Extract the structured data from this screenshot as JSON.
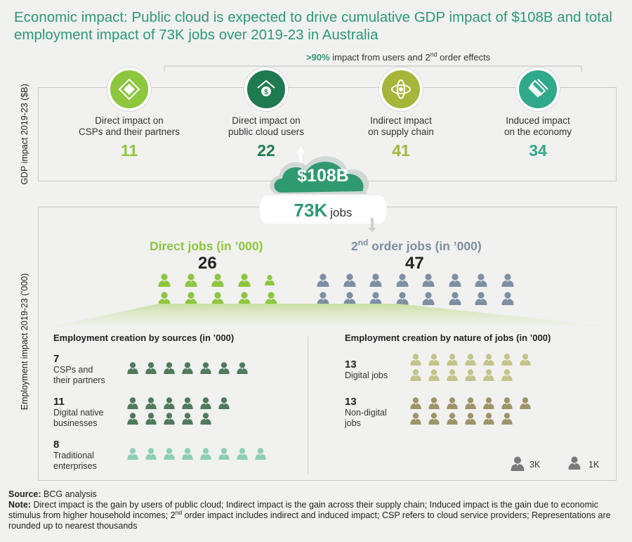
{
  "title": "Economic impact: Public cloud is expected to drive cumulative GDP impact of $108B and total employment impact of 73K jobs over 2019-23 in Australia",
  "banner": {
    "pct": ">90%",
    "text_before_sup": "impact from users and 2",
    "sup": "nd",
    "text_after_sup": "order effects"
  },
  "gdp_axis_label": "GDP impact 2019-23 ($B)",
  "employment_axis_label": "Employment impact 2019-23 (’000)",
  "colors": {
    "light_green": "#8dc63f",
    "dark_green": "#1f7a4f",
    "olive": "#a7b53a",
    "teal": "#2fa98a",
    "blue_gray": "#7d8fa3",
    "olive_light": "#c4c48a",
    "olive_dark": "#9e9468",
    "mint": "#8ccfb6",
    "forest": "#4f7a5c"
  },
  "impacts": [
    {
      "label_line1": "Direct impact on",
      "label_line2": "CSPs and their partners",
      "value": "11",
      "icon": "diamond-icon",
      "color": "#8dc63f"
    },
    {
      "label_line1": "Direct impact on",
      "label_line2": "public cloud users",
      "value": "22",
      "icon": "dollar-house-icon",
      "color": "#1f7a4f"
    },
    {
      "label_line1": "Indirect impact",
      "label_line2": "on supply chain",
      "value": "41",
      "icon": "globe-icon",
      "color": "#a7b53a"
    },
    {
      "label_line1": "Induced impact",
      "label_line2": "on the economy",
      "value": "34",
      "icon": "layers-icon",
      "color": "#2fa98a"
    }
  ],
  "totals": {
    "gdp": "$108B",
    "jobs": "73K",
    "jobs_word": "jobs"
  },
  "direct_jobs": {
    "title": "Direct jobs (in ’000)",
    "value": "26",
    "icons_3k": 9,
    "icons_1k": 1
  },
  "second_order_jobs": {
    "title_pre": "2",
    "title_sup": "nd",
    "title_post": " order jobs (in ’000)",
    "value": "47",
    "icons_3k": 16
  },
  "by_sources": {
    "title": "Employment creation by sources (in ’000)",
    "rows": [
      {
        "value": "7",
        "label_line1": "CSPs and",
        "label_line2": "their partners",
        "icons_1k": 7
      },
      {
        "value": "11",
        "label_line1": "Digital native",
        "label_line2": "businesses",
        "icons_1k": 11
      },
      {
        "value": "8",
        "label_line1": "Traditional",
        "label_line2": "enterprises",
        "icons_1k": 8
      }
    ]
  },
  "by_nature": {
    "title": "Employment creation by nature of jobs (in ’000)",
    "rows": [
      {
        "value": "13",
        "label_line1": "Digital jobs",
        "label_line2": "",
        "icons_1k": 13
      },
      {
        "value": "13",
        "label_line1": "Non-digital",
        "label_line2": "jobs",
        "icons_1k": 13
      }
    ]
  },
  "legend": {
    "big": "3K",
    "small": "1K"
  },
  "footer": {
    "source_label": "Source:",
    "source_text": "BCG analysis",
    "note_label": "Note:",
    "note_text_1": "Direct impact is the gain by users of public cloud; Indirect impact is the gain across their supply chain; Induced impact is the gain due to economic stimulus from higher household incomes; 2",
    "note_sup": "nd",
    "note_text_2": " order impact includes indirect and induced impact; CSP refers to cloud service providers; Representations are rounded up to nearest thousands"
  }
}
